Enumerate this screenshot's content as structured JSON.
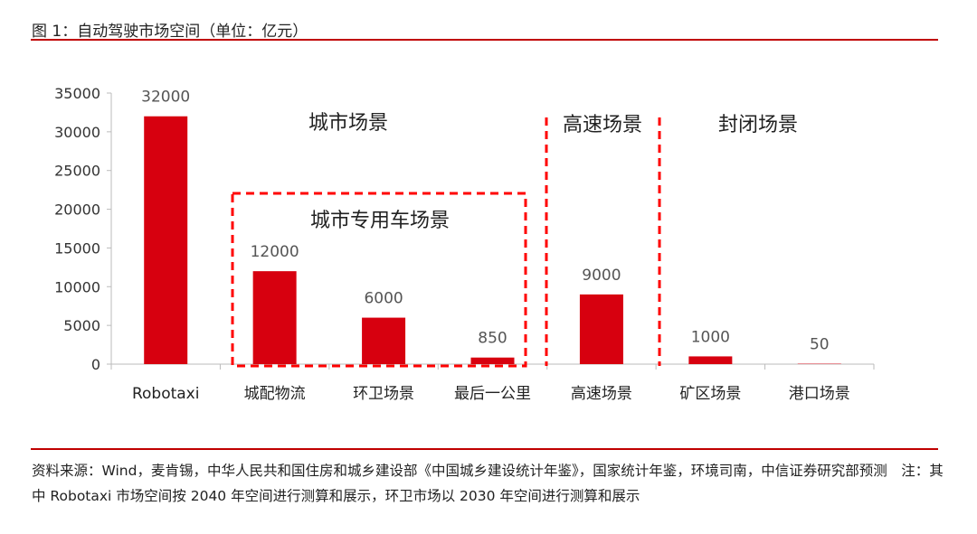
{
  "title": "图 1：自动驾驶市场空间（单位：亿元）",
  "footer": "资料来源：Wind，麦肯锡，中华人民共和国住房和城乡建设部《中国城乡建设统计年鉴》，国家统计年鉴，环境司南，中信证券研究部预测　注：其中 Robotaxi 市场空间按 2040 年空间进行测算和展示，环卫市场以 2030 年空间进行测算和展示",
  "colors": {
    "bar": "#d7000f",
    "accent": "#c00000",
    "dash": "#ff0000"
  },
  "chart_data": {
    "type": "bar",
    "categories": [
      "Robotaxi",
      "城配物流",
      "环卫场景",
      "最后一公里",
      "高速场景",
      "矿区场景",
      "港口场景"
    ],
    "values": [
      32000,
      12000,
      6000,
      850,
      9000,
      1000,
      50
    ],
    "ylim": [
      0,
      35000
    ],
    "yticks": [
      0,
      5000,
      10000,
      15000,
      20000,
      25000,
      30000,
      35000
    ],
    "annotations": [
      "城市场景",
      "城市专用车场景",
      "高速场景",
      "封闭场景"
    ],
    "xlabel": "",
    "ylabel": ""
  }
}
